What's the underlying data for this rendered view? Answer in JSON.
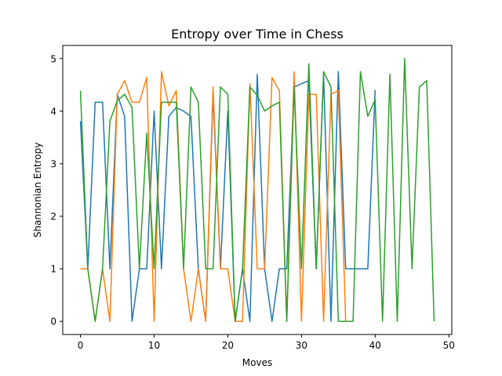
{
  "chart_data": {
    "type": "line",
    "title": "Entropy over Time in Chess",
    "xlabel": "Moves",
    "ylabel": "Shannonian Entropy",
    "xlim": [
      -2.4,
      50.4
    ],
    "ylim": [
      -0.25,
      5.25
    ],
    "xticks": [
      0,
      10,
      20,
      30,
      40,
      50
    ],
    "yticks": [
      0,
      1,
      2,
      3,
      4,
      5
    ],
    "grid": false,
    "series": [
      {
        "color": "#1f77b4",
        "x": [
          0,
          1,
          2,
          3,
          4,
          5,
          6,
          7,
          8,
          9,
          10,
          11,
          12,
          13,
          14,
          15,
          16,
          17,
          18,
          19,
          20,
          21,
          22,
          23,
          24,
          25,
          26,
          27,
          28,
          29,
          30,
          31,
          32,
          33,
          34,
          35,
          36,
          37,
          38,
          39,
          40
        ],
        "values": [
          3.81,
          1.0,
          4.17,
          4.17,
          1.0,
          4.32,
          3.9,
          0.0,
          1.0,
          1.0,
          4.0,
          1.0,
          3.9,
          4.07,
          4.0,
          3.9,
          1.0,
          0.0,
          4.32,
          1.0,
          4.0,
          0.0,
          1.0,
          0.0,
          4.7,
          1.0,
          0.0,
          1.0,
          1.0,
          4.46,
          4.52,
          4.58,
          1.0,
          4.7,
          0.0,
          4.75,
          1.0,
          1.0,
          1.0,
          1.0,
          4.4
        ]
      },
      {
        "color": "#ff7f0e",
        "x": [
          0,
          1,
          2,
          3,
          4,
          5,
          6,
          7,
          8,
          9,
          10,
          11,
          12,
          13,
          14,
          15,
          16,
          17,
          18,
          19,
          20,
          21,
          22,
          23,
          24,
          25,
          26,
          27,
          28,
          29,
          30,
          31,
          32,
          33,
          34,
          35,
          36
        ],
        "values": [
          1.0,
          1.0,
          0.0,
          1.0,
          0.0,
          4.32,
          4.58,
          4.17,
          4.17,
          4.64,
          0.0,
          4.75,
          4.1,
          4.39,
          1.0,
          0.0,
          1.0,
          0.0,
          4.46,
          1.0,
          1.0,
          0.0,
          0.0,
          4.52,
          1.0,
          1.0,
          4.64,
          4.39,
          0.0,
          4.75,
          0.0,
          4.32,
          4.32,
          0.0,
          4.32,
          4.39,
          0.0
        ]
      },
      {
        "color": "#2ca02c",
        "x": [
          0,
          1,
          2,
          3,
          4,
          5,
          6,
          7,
          8,
          9,
          10,
          11,
          12,
          13,
          14,
          15,
          16,
          17,
          18,
          19,
          20,
          21,
          22,
          23,
          24,
          25,
          26,
          27,
          28,
          29,
          30,
          31,
          32,
          33,
          34,
          35,
          36,
          37,
          38,
          39,
          40,
          41,
          42,
          43,
          44,
          45,
          46,
          47,
          48
        ],
        "values": [
          4.39,
          1.0,
          0.0,
          1.0,
          3.81,
          4.2,
          4.32,
          4.07,
          1.0,
          3.58,
          1.0,
          4.17,
          4.17,
          4.17,
          1.0,
          4.46,
          4.17,
          1.0,
          1.0,
          4.46,
          4.32,
          0.0,
          1.0,
          4.46,
          4.3,
          4.0,
          4.1,
          4.17,
          0.0,
          4.46,
          1.0,
          4.9,
          1.0,
          4.75,
          4.46,
          0.0,
          0.0,
          0.0,
          4.75,
          3.9,
          4.22,
          0.0,
          4.7,
          0.0,
          5.0,
          1.0,
          4.46,
          4.58,
          0.0
        ]
      }
    ]
  }
}
